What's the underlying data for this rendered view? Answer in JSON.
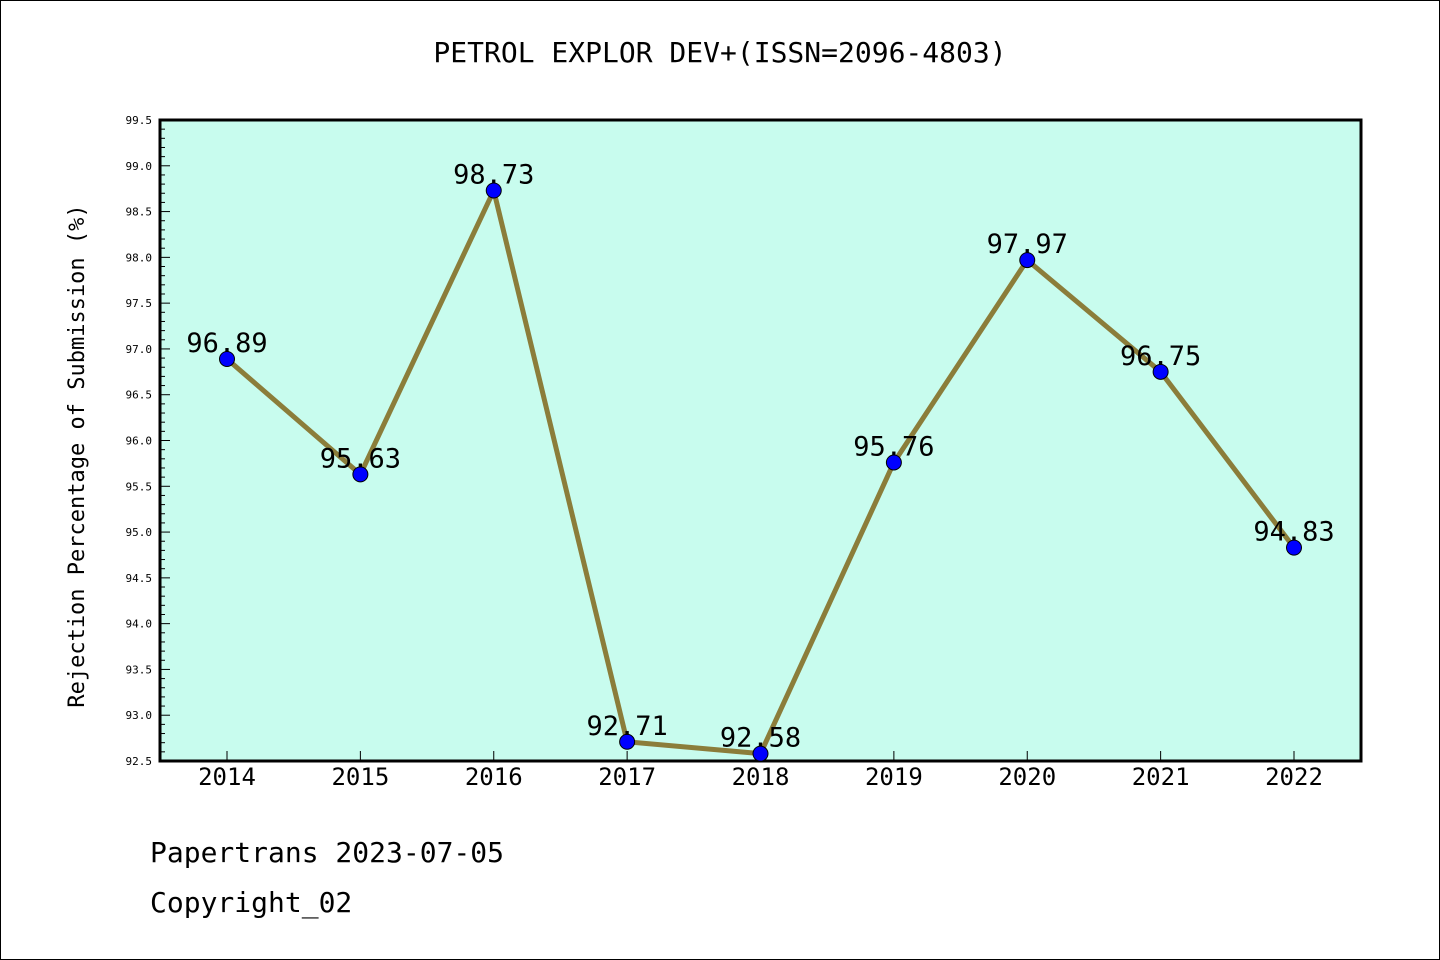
{
  "chart_data": {
    "type": "line",
    "title": "PETROL EXPLOR DEV+(ISSN=2096-4803)",
    "xlabel": "",
    "ylabel": "Rejection Percentage of Submission (%)",
    "categories": [
      "2014",
      "2015",
      "2016",
      "2017",
      "2018",
      "2019",
      "2020",
      "2021",
      "2022"
    ],
    "series": [
      {
        "values": [
          96.89,
          95.63,
          98.73,
          92.71,
          92.58,
          95.76,
          97.97,
          96.75,
          94.83
        ]
      }
    ],
    "data_labels": [
      "96.89",
      "95.63",
      "98.73",
      "92.71",
      "92.58",
      "95.76",
      "97.97",
      "96.75",
      "94.83"
    ],
    "ylim": [
      92.5,
      99.5
    ],
    "yticks": [
      "92.5",
      "93.0",
      "93.5",
      "94.0",
      "94.5",
      "95.0",
      "95.5",
      "96.0",
      "96.5",
      "97.0",
      "97.5",
      "98.0",
      "98.5",
      "99.0",
      "99.5"
    ],
    "grid": false,
    "colors": {
      "plot_background": "#c8fcee",
      "line": "#8b7d3a",
      "marker": "#0000ff"
    }
  },
  "footer": {
    "line1": "Papertrans 2023-07-05",
    "line2": "Copyright_02"
  }
}
